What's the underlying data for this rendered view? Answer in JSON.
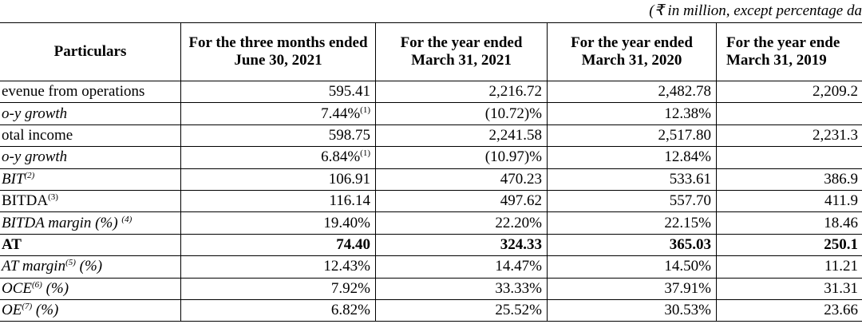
{
  "note": "(₹ in million, except percentage da",
  "table": {
    "header": [
      "Particulars",
      "For the three months ended June 30, 2021",
      "For the year ended March 31, 2021",
      "For the year ended March 31, 2020",
      "For the year ende March 31, 2019"
    ],
    "rows": [
      {
        "label": [
          {
            "t": "evenue from operations"
          }
        ],
        "italic": false,
        "bold": false,
        "cells": [
          {
            "t": "595.41"
          },
          {
            "t": "2,216.72"
          },
          {
            "t": "2,482.78"
          },
          {
            "t": "2,209.2"
          }
        ]
      },
      {
        "label": [
          {
            "t": "o-y growth"
          }
        ],
        "italic": true,
        "bold": false,
        "cells": [
          {
            "t": "7.44%",
            "s": "(1)"
          },
          {
            "t": "(10.72)%"
          },
          {
            "t": "12.38%"
          },
          null
        ]
      },
      {
        "label": [
          {
            "t": "otal income"
          }
        ],
        "italic": false,
        "bold": false,
        "cells": [
          {
            "t": "598.75"
          },
          {
            "t": "2,241.58"
          },
          {
            "t": "2,517.80"
          },
          {
            "t": "2,231.3"
          }
        ]
      },
      {
        "label": [
          {
            "t": "o-y growth"
          }
        ],
        "italic": true,
        "bold": false,
        "cells": [
          {
            "t": "6.84%",
            "s": "(1)"
          },
          {
            "t": "(10.97)%"
          },
          {
            "t": "12.84%"
          },
          null
        ]
      },
      {
        "label": [
          {
            "t": "BIT"
          },
          {
            "s": "(2)"
          }
        ],
        "italic": true,
        "bold": false,
        "cells": [
          {
            "t": "106.91"
          },
          {
            "t": "470.23"
          },
          {
            "t": "533.61"
          },
          {
            "t": "386.9"
          }
        ]
      },
      {
        "label": [
          {
            "t": "BITDA"
          },
          {
            "s": "(3)"
          }
        ],
        "italic": false,
        "bold": false,
        "cells": [
          {
            "t": "116.14"
          },
          {
            "t": "497.62"
          },
          {
            "t": "557.70"
          },
          {
            "t": "411.9"
          }
        ]
      },
      {
        "label": [
          {
            "t": "BITDA margin (%) "
          },
          {
            "s": "(4)"
          }
        ],
        "italic": true,
        "bold": false,
        "cells": [
          {
            "t": "19.40%"
          },
          {
            "t": "22.20%"
          },
          {
            "t": "22.15%"
          },
          {
            "t": "18.46"
          }
        ]
      },
      {
        "label": [
          {
            "t": "AT"
          }
        ],
        "italic": false,
        "bold": true,
        "cells": [
          {
            "t": "74.40"
          },
          {
            "t": "324.33"
          },
          {
            "t": "365.03"
          },
          {
            "t": "250.1"
          }
        ]
      },
      {
        "label": [
          {
            "t": "AT margin"
          },
          {
            "s": "(5)"
          },
          {
            "t": " (%)"
          }
        ],
        "italic": true,
        "bold": false,
        "cells": [
          {
            "t": "12.43%"
          },
          {
            "t": "14.47%"
          },
          {
            "t": "14.50%"
          },
          {
            "t": "11.21"
          }
        ]
      },
      {
        "label": [
          {
            "t": "OCE"
          },
          {
            "s": "(6)"
          },
          {
            "t": " (%)"
          }
        ],
        "italic": true,
        "bold": false,
        "cells": [
          {
            "t": "7.92%"
          },
          {
            "t": "33.33%"
          },
          {
            "t": "37.91%"
          },
          {
            "t": "31.31"
          }
        ]
      },
      {
        "label": [
          {
            "t": "OE"
          },
          {
            "s": "(7)"
          },
          {
            "t": " (%)"
          }
        ],
        "italic": true,
        "bold": false,
        "cells": [
          {
            "t": "6.82%"
          },
          {
            "t": "25.52%"
          },
          {
            "t": "30.53%"
          },
          {
            "t": "23.66"
          }
        ]
      }
    ]
  }
}
